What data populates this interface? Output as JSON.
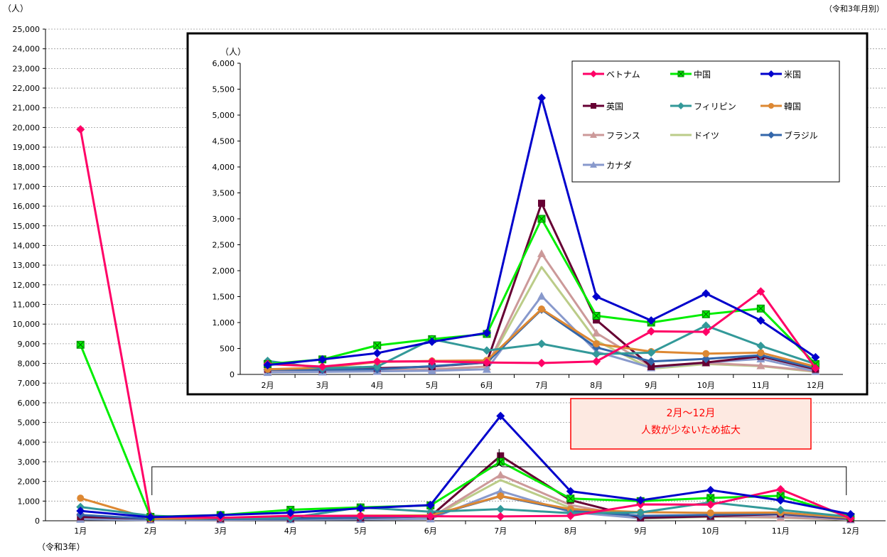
{
  "chart_data": [
    {
      "type": "line",
      "ylabel": "（人）",
      "corner_note": "（令和3年月別）",
      "x_sublabel": "（令和3年）",
      "categories": [
        "1月",
        "2月",
        "3月",
        "4月",
        "5月",
        "6月",
        "7月",
        "8月",
        "9月",
        "10月",
        "11月",
        "12月"
      ],
      "ylim": [
        0,
        25000
      ],
      "ytick_step": 1000,
      "grid": true,
      "annotation": {
        "line1": "2月～12月",
        "line2": "人数が少ないため拡大"
      },
      "series": [
        {
          "name": "ベトナム",
          "color": "#ff0066",
          "marker": "diamond",
          "values": [
            19900,
            200,
            150,
            250,
            250,
            230,
            220,
            250,
            830,
            820,
            1600,
            120
          ]
        },
        {
          "name": "中国",
          "color": "#00ee00",
          "marker": "square-x",
          "values": [
            8950,
            200,
            290,
            560,
            680,
            780,
            3000,
            1130,
            1000,
            1160,
            1270,
            200
          ]
        },
        {
          "name": "米国",
          "color": "#0000cc",
          "marker": "diamond",
          "values": [
            500,
            180,
            290,
            410,
            630,
            800,
            5330,
            1500,
            1040,
            1560,
            1040,
            330
          ]
        },
        {
          "name": "英国",
          "color": "#660033",
          "marker": "square",
          "values": [
            200,
            100,
            100,
            120,
            150,
            230,
            3300,
            1050,
            150,
            230,
            350,
            100
          ]
        },
        {
          "name": "フィリピン",
          "color": "#339999",
          "marker": "diamond",
          "values": [
            700,
            260,
            120,
            150,
            680,
            460,
            590,
            390,
            420,
            940,
            550,
            200
          ]
        },
        {
          "name": "韓国",
          "color": "#dd8833",
          "marker": "circle",
          "values": [
            1150,
            100,
            130,
            240,
            260,
            270,
            1260,
            590,
            440,
            400,
            420,
            150
          ]
        },
        {
          "name": "フランス",
          "color": "#cc9999",
          "marker": "triangle",
          "values": [
            100,
            60,
            80,
            80,
            100,
            150,
            2330,
            800,
            150,
            220,
            170,
            60
          ]
        },
        {
          "name": "ドイツ",
          "color": "#bbcc88",
          "marker": "none",
          "values": [
            80,
            60,
            60,
            80,
            90,
            150,
            2070,
            650,
            110,
            200,
            160,
            50
          ]
        },
        {
          "name": "ブラジル",
          "color": "#3366aa",
          "marker": "diamond",
          "values": [
            300,
            90,
            90,
            100,
            160,
            230,
            1250,
            520,
            250,
            300,
            370,
            120
          ]
        },
        {
          "name": "カナダ",
          "color": "#8899cc",
          "marker": "triangle",
          "values": [
            80,
            40,
            50,
            60,
            70,
            100,
            1510,
            440,
            130,
            230,
            300,
            60
          ]
        }
      ]
    },
    {
      "type": "line",
      "ylabel": "（人）",
      "categories": [
        "2月",
        "3月",
        "4月",
        "5月",
        "6月",
        "7月",
        "8月",
        "9月",
        "10月",
        "11月",
        "12月"
      ],
      "ylim": [
        0,
        6000
      ],
      "ytick_step": 500,
      "grid": false,
      "legend": "top-right",
      "series_ref": "months 2月–12月 of the main chart"
    }
  ]
}
